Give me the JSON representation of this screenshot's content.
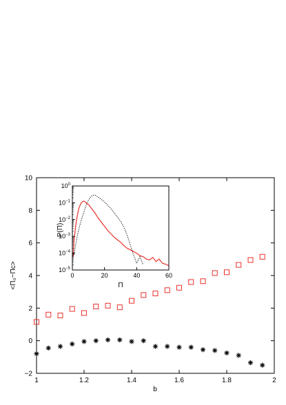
{
  "chart_data": [
    {
      "type": "scatter",
      "title": "",
      "xlabel": "b",
      "ylabel": "<Π₀−Πᴄ>",
      "xlim": [
        1,
        2
      ],
      "ylim": [
        -2,
        10
      ],
      "xticks": [
        "1",
        "1.2",
        "1.4",
        "1.6",
        "1.8",
        "2"
      ],
      "yticks": [
        "−2",
        "0",
        "2",
        "4",
        "6",
        "8",
        "10"
      ],
      "grid": false,
      "series": [
        {
          "marker": "square",
          "color": "#e8312a",
          "x": [
            1.0,
            1.05,
            1.1,
            1.15,
            1.2,
            1.25,
            1.3,
            1.35,
            1.4,
            1.45,
            1.5,
            1.55,
            1.6,
            1.65,
            1.7,
            1.75,
            1.8,
            1.85,
            1.9,
            1.95
          ],
          "y": [
            1.15,
            1.6,
            1.55,
            1.95,
            1.7,
            2.1,
            2.15,
            2.05,
            2.45,
            2.8,
            2.9,
            3.1,
            3.25,
            3.6,
            3.65,
            4.15,
            4.2,
            4.65,
            4.95,
            5.15
          ]
        },
        {
          "marker": "asterisk",
          "color": "#000000",
          "x": [
            1.0,
            1.05,
            1.1,
            1.15,
            1.2,
            1.25,
            1.3,
            1.35,
            1.4,
            1.45,
            1.5,
            1.55,
            1.6,
            1.65,
            1.7,
            1.75,
            1.8,
            1.85,
            1.9,
            1.95
          ],
          "y": [
            -0.8,
            -0.45,
            -0.35,
            -0.2,
            -0.05,
            0.0,
            0.05,
            0.05,
            -0.05,
            0.0,
            -0.35,
            -0.35,
            -0.4,
            -0.4,
            -0.55,
            -0.6,
            -0.75,
            -0.9,
            -1.35,
            -1.5
          ]
        }
      ]
    },
    {
      "type": "line",
      "title": "",
      "xlabel": "Π",
      "ylabel": "P(Π)",
      "xlim": [
        0,
        60
      ],
      "ylim_log10": [
        -5,
        0
      ],
      "yscale": "log",
      "xticks": [
        "0",
        "20",
        "40",
        "60"
      ],
      "yticks": [
        {
          "base": "10",
          "exp": "0"
        },
        {
          "base": "10",
          "exp": "−1"
        },
        {
          "base": "10",
          "exp": "−2"
        },
        {
          "base": "10",
          "exp": "−3"
        },
        {
          "base": "10",
          "exp": "−4"
        },
        {
          "base": "10",
          "exp": "−5"
        }
      ],
      "series": [
        {
          "style": "solid",
          "color": "#e8312a",
          "x": [
            0.5,
            1,
            2,
            3,
            4,
            5,
            6,
            7,
            8,
            9,
            10,
            12,
            14,
            16,
            18,
            20,
            22,
            24,
            26,
            28,
            30,
            32,
            34,
            36,
            38,
            40,
            42,
            44,
            46,
            48,
            50,
            52,
            54,
            56,
            58,
            60
          ],
          "y_log10": [
            -4.2,
            -3.3,
            -2.4,
            -1.8,
            -1.35,
            -1.1,
            -0.95,
            -0.9,
            -0.95,
            -1.05,
            -1.1,
            -1.35,
            -1.6,
            -1.9,
            -2.15,
            -2.4,
            -2.65,
            -2.85,
            -3.05,
            -3.2,
            -3.35,
            -3.55,
            -3.7,
            -3.8,
            -3.9,
            -4.0,
            -4.15,
            -4.2,
            -4.35,
            -4.4,
            -4.25,
            -4.5,
            -4.35,
            -4.6,
            -4.65,
            -4.75
          ]
        },
        {
          "style": "dotted",
          "color": "#000000",
          "x": [
            1,
            2,
            3,
            4,
            5,
            6,
            7,
            8,
            9,
            10,
            11,
            12,
            13,
            14,
            15,
            16,
            18,
            20,
            22,
            24,
            26,
            28,
            30,
            32,
            34,
            36,
            38,
            40,
            42,
            44
          ],
          "y_log10": [
            -4.1,
            -3.5,
            -3.0,
            -2.6,
            -2.2,
            -1.9,
            -1.6,
            -1.3,
            -1.05,
            -0.85,
            -0.7,
            -0.6,
            -0.55,
            -0.55,
            -0.6,
            -0.65,
            -0.8,
            -0.95,
            -1.15,
            -1.35,
            -1.6,
            -1.85,
            -2.1,
            -2.45,
            -2.9,
            -3.5,
            -4.1,
            -4.6,
            -4.2,
            -4.7
          ]
        }
      ]
    }
  ]
}
